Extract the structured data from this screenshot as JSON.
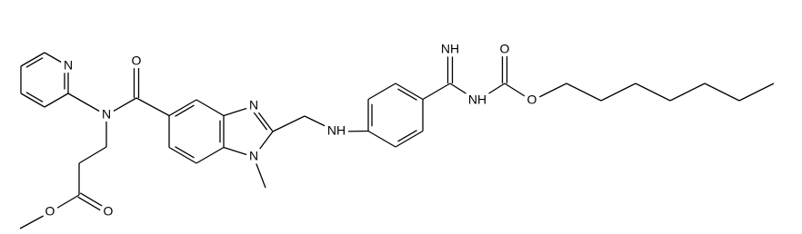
{
  "labels": [
    "N",
    "N",
    "O",
    "N",
    "N",
    "NH",
    "NH",
    "NH",
    "O",
    "O",
    "O",
    "O"
  ]
}
